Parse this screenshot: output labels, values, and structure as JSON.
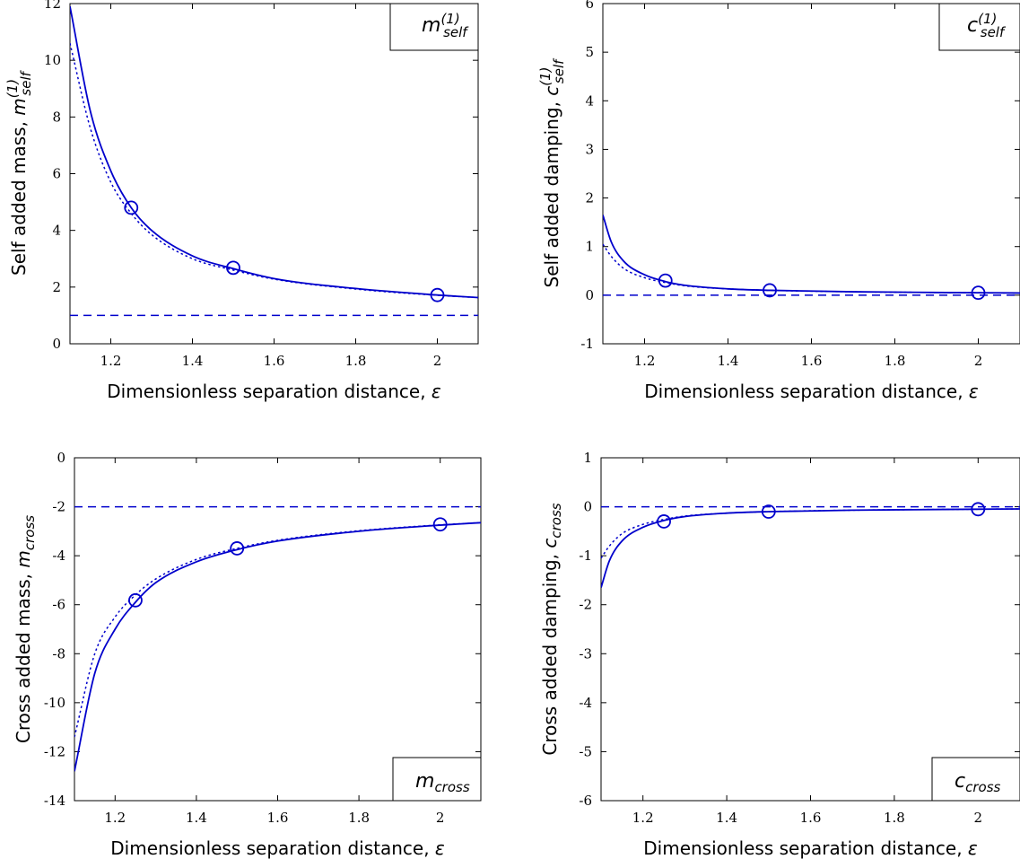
{
  "chart_data": [
    {
      "type": "line",
      "xlabel_text": "Dimensionless separation distance, ",
      "xlabel_symbol": "ε",
      "ylabel_text": "Self added mass, ",
      "ylabel_symbol": "m",
      "ylabel_sub": "self",
      "ylabel_sup": "(1)",
      "legend_symbol": "m",
      "legend_sub": "self",
      "legend_sup": "(1)",
      "legend_position": "top-right",
      "xlim": [
        1.1,
        2.1
      ],
      "ylim": [
        0,
        12
      ],
      "xticks": [
        1.2,
        1.4,
        1.6,
        1.8,
        2
      ],
      "xtick_labels": [
        "1.2",
        "1.4",
        "1.6",
        "1.8",
        "2"
      ],
      "yticks": [
        0,
        2,
        4,
        6,
        8,
        10,
        12
      ],
      "ytick_labels": [
        "0",
        "2",
        "4",
        "6",
        "8",
        "10",
        "12"
      ],
      "series": [
        {
          "style": "solid",
          "x": [
            1.1,
            1.15,
            1.2,
            1.25,
            1.3,
            1.4,
            1.5,
            1.6,
            1.8,
            2.0,
            2.1
          ],
          "y": [
            11.9,
            8.2,
            6.1,
            4.8,
            4.0,
            3.1,
            2.65,
            2.3,
            1.95,
            1.72,
            1.63
          ]
        },
        {
          "style": "dotted",
          "x": [
            1.1,
            1.15,
            1.2,
            1.25,
            1.3,
            1.4,
            1.5,
            1.6,
            1.8,
            2.0,
            2.1
          ],
          "y": [
            10.6,
            7.6,
            5.7,
            4.6,
            3.85,
            3.0,
            2.6,
            2.28,
            1.93,
            1.71,
            1.63
          ]
        },
        {
          "style": "dashed",
          "x": [
            1.1,
            2.1
          ],
          "y": [
            1.0,
            1.0
          ]
        }
      ],
      "markers": {
        "x": [
          1.25,
          1.5,
          2.0
        ],
        "y": [
          4.8,
          2.68,
          1.72
        ]
      }
    },
    {
      "type": "line",
      "xlabel_text": "Dimensionless separation distance, ",
      "xlabel_symbol": "ε",
      "ylabel_text": "Self added damping, ",
      "ylabel_symbol": "c",
      "ylabel_sub": "self",
      "ylabel_sup": "(1)",
      "legend_symbol": "c",
      "legend_sub": "self",
      "legend_sup": "(1)",
      "legend_position": "top-right",
      "xlim": [
        1.1,
        2.1
      ],
      "ylim": [
        -1,
        6
      ],
      "xticks": [
        1.2,
        1.4,
        1.6,
        1.8,
        2
      ],
      "xtick_labels": [
        "1.2",
        "1.4",
        "1.6",
        "1.8",
        "2"
      ],
      "yticks": [
        -1,
        0,
        1,
        2,
        3,
        4,
        5,
        6
      ],
      "ytick_labels": [
        "-1",
        "0",
        "1",
        "2",
        "3",
        "4",
        "5",
        "6"
      ],
      "series": [
        {
          "style": "solid",
          "x": [
            1.1,
            1.12,
            1.15,
            1.2,
            1.25,
            1.3,
            1.4,
            1.5,
            1.7,
            2.0,
            2.1
          ],
          "y": [
            1.65,
            1.1,
            0.7,
            0.42,
            0.28,
            0.2,
            0.13,
            0.1,
            0.07,
            0.05,
            0.045
          ]
        },
        {
          "style": "dotted",
          "x": [
            1.1,
            1.12,
            1.15,
            1.2,
            1.25,
            1.3,
            1.4,
            1.5,
            1.7,
            2.0,
            2.1
          ],
          "y": [
            1.05,
            0.8,
            0.55,
            0.36,
            0.26,
            0.19,
            0.13,
            0.1,
            0.07,
            0.05,
            0.045
          ]
        },
        {
          "style": "dashed",
          "x": [
            1.1,
            2.1
          ],
          "y": [
            0,
            0
          ]
        }
      ],
      "markers": {
        "x": [
          1.25,
          1.5,
          2.0
        ],
        "y": [
          0.3,
          0.1,
          0.05
        ]
      }
    },
    {
      "type": "line",
      "xlabel_text": "Dimensionless separation distance, ",
      "xlabel_symbol": "ε",
      "ylabel_text": "Cross added mass, ",
      "ylabel_symbol": "m",
      "ylabel_sub": "cross",
      "ylabel_sup": "",
      "legend_symbol": "m",
      "legend_sub": "cross",
      "legend_sup": "",
      "legend_position": "bottom-right",
      "xlim": [
        1.1,
        2.1
      ],
      "ylim": [
        -14,
        0
      ],
      "xticks": [
        1.2,
        1.4,
        1.6,
        1.8,
        2
      ],
      "xtick_labels": [
        "1.2",
        "1.4",
        "1.6",
        "1.8",
        "2"
      ],
      "yticks": [
        -14,
        -12,
        -10,
        -8,
        -6,
        -4,
        -2,
        0
      ],
      "ytick_labels": [
        "-14",
        "-12",
        "-10",
        "-8",
        "-6",
        "-4",
        "-2",
        "0"
      ],
      "series": [
        {
          "style": "solid",
          "x": [
            1.1,
            1.15,
            1.2,
            1.25,
            1.3,
            1.4,
            1.5,
            1.6,
            1.8,
            2.0,
            2.1
          ],
          "y": [
            -12.8,
            -8.8,
            -7.0,
            -5.9,
            -5.1,
            -4.25,
            -3.75,
            -3.4,
            -3.0,
            -2.75,
            -2.65
          ]
        },
        {
          "style": "dotted",
          "x": [
            1.1,
            1.15,
            1.2,
            1.25,
            1.3,
            1.4,
            1.5,
            1.6,
            1.8,
            2.0,
            2.1
          ],
          "y": [
            -11.4,
            -8.0,
            -6.5,
            -5.6,
            -4.95,
            -4.15,
            -3.7,
            -3.37,
            -2.98,
            -2.74,
            -2.65
          ]
        },
        {
          "style": "dashed",
          "x": [
            1.1,
            2.1
          ],
          "y": [
            -2,
            -2
          ]
        }
      ],
      "markers": {
        "x": [
          1.25,
          1.5,
          2.0
        ],
        "y": [
          -5.82,
          -3.7,
          -2.72
        ]
      }
    },
    {
      "type": "line",
      "xlabel_text": "Dimensionless separation distance, ",
      "xlabel_symbol": "ε",
      "ylabel_text": "Cross added damping, ",
      "ylabel_symbol": "c",
      "ylabel_sub": "cross",
      "ylabel_sup": "",
      "legend_symbol": "c",
      "legend_sub": "cross",
      "legend_sup": "",
      "legend_position": "bottom-right",
      "xlim": [
        1.1,
        2.1
      ],
      "ylim": [
        -6,
        1
      ],
      "xticks": [
        1.2,
        1.4,
        1.6,
        1.8,
        2
      ],
      "xtick_labels": [
        "1.2",
        "1.4",
        "1.6",
        "1.8",
        "2"
      ],
      "yticks": [
        -6,
        -5,
        -4,
        -3,
        -2,
        -1,
        0,
        1
      ],
      "ytick_labels": [
        "-6",
        "-5",
        "-4",
        "-3",
        "-2",
        "-1",
        "0",
        "1"
      ],
      "series": [
        {
          "style": "solid",
          "x": [
            1.1,
            1.12,
            1.15,
            1.2,
            1.25,
            1.3,
            1.4,
            1.5,
            1.7,
            2.0,
            2.1
          ],
          "y": [
            -1.65,
            -1.1,
            -0.7,
            -0.42,
            -0.28,
            -0.2,
            -0.13,
            -0.1,
            -0.07,
            -0.05,
            -0.045
          ]
        },
        {
          "style": "dotted",
          "x": [
            1.1,
            1.12,
            1.15,
            1.2,
            1.25,
            1.3,
            1.4,
            1.5,
            1.7,
            2.0,
            2.1
          ],
          "y": [
            -1.05,
            -0.8,
            -0.55,
            -0.36,
            -0.26,
            -0.19,
            -0.13,
            -0.1,
            -0.07,
            -0.05,
            -0.045
          ]
        },
        {
          "style": "dashed",
          "x": [
            1.1,
            2.1
          ],
          "y": [
            0,
            0
          ]
        }
      ],
      "markers": {
        "x": [
          1.25,
          1.5,
          2.0
        ],
        "y": [
          -0.3,
          -0.1,
          -0.05
        ]
      }
    }
  ],
  "colors": {
    "series": "#0000cc",
    "axis": "#000000"
  }
}
